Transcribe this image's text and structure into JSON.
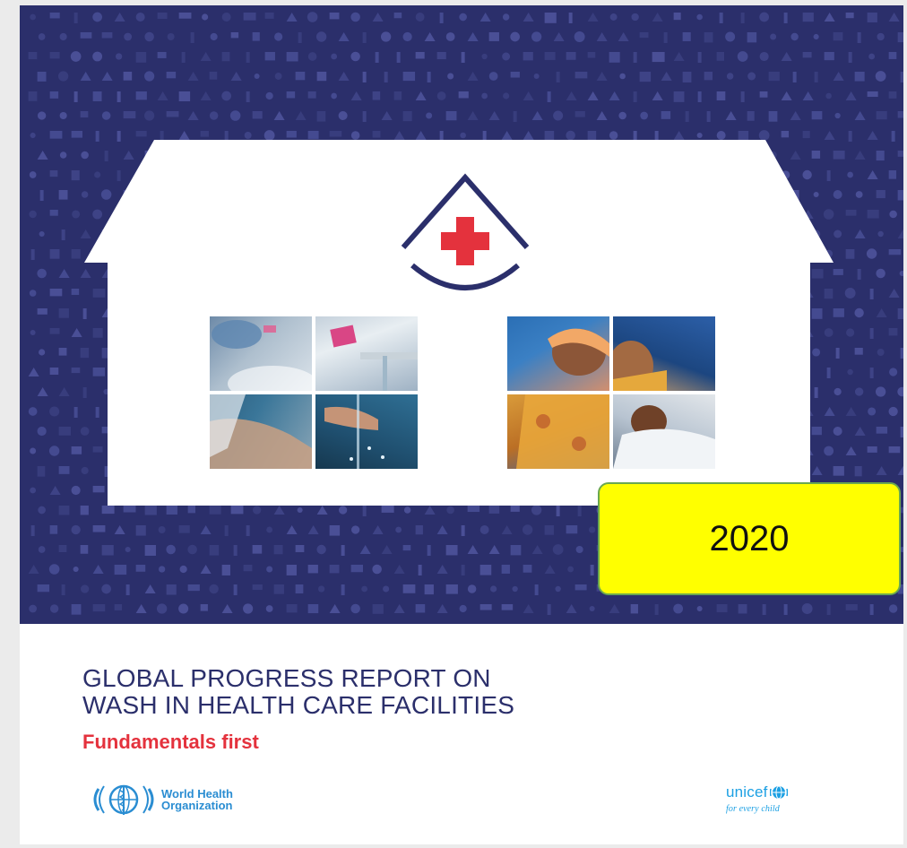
{
  "cover": {
    "year": "2020",
    "title_lines": [
      "GLOBAL PROGRESS REPORT ON",
      "WASH IN HEALTH CARE FACILITIES"
    ],
    "subtitle": "Fundamentals first"
  },
  "logos": {
    "who": {
      "lines": [
        "World Health",
        "Organization"
      ]
    },
    "unicef": {
      "name": "unicef",
      "tagline": "for every child"
    }
  },
  "colors": {
    "background_navy": "#2b2f6b",
    "title_navy": "#2b2f6b",
    "subtitle_red": "#e4323d",
    "cross_red": "#e4323d",
    "badge_yellow": "#ffff00",
    "badge_border": "#6aa84f",
    "who_blue": "#2a8dd2",
    "unicef_blue": "#1ca0e3"
  },
  "icons": [
    "water-drop-cross-icon",
    "who-emblem-icon",
    "unicef-globe-icon"
  ]
}
